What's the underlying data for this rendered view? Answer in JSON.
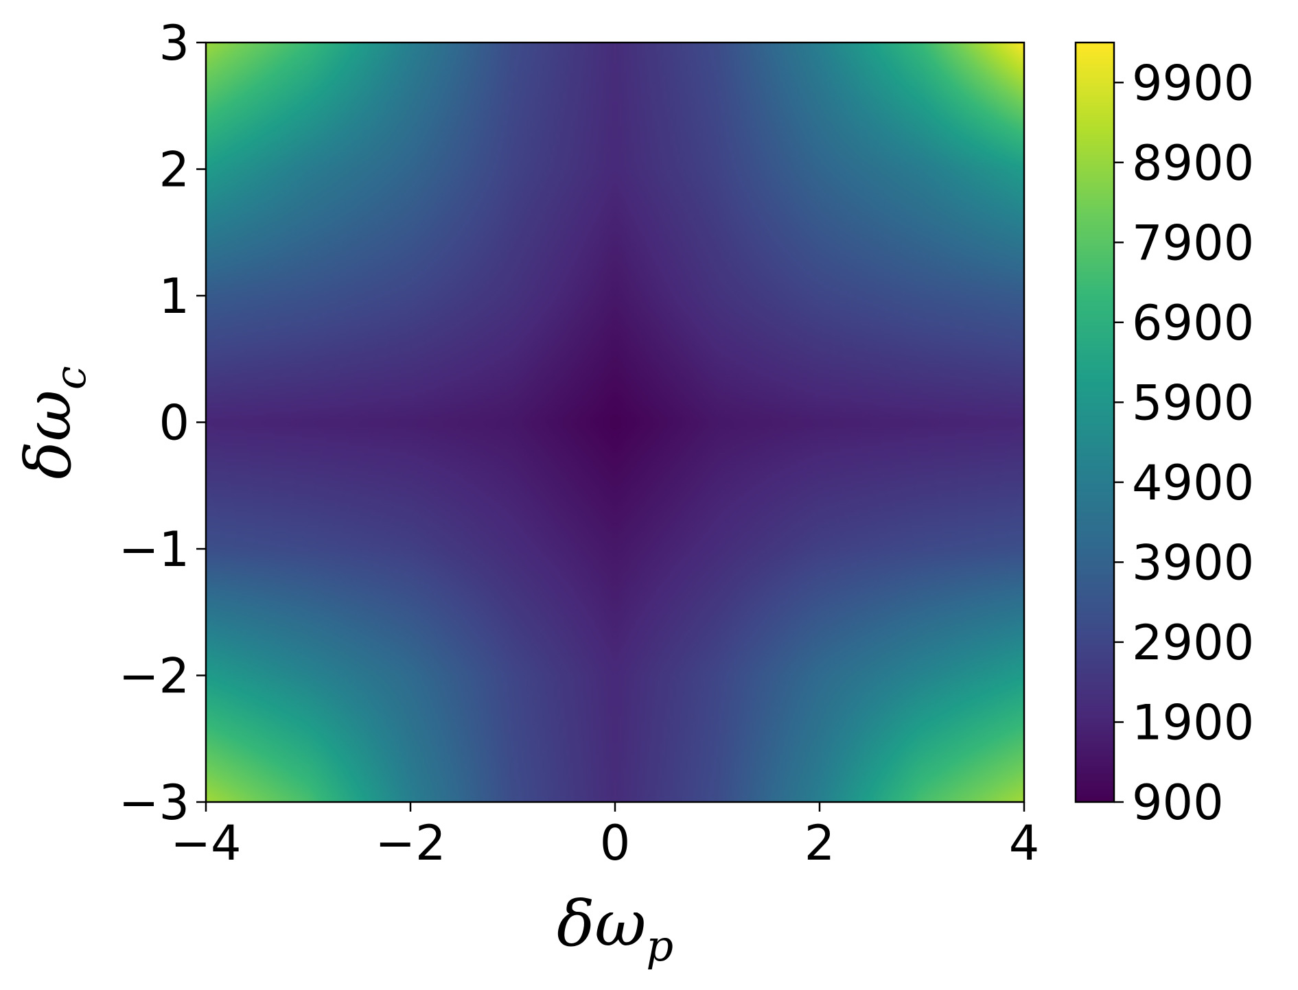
{
  "chart_data": {
    "type": "heatmap",
    "title": "",
    "xlabel": {
      "base": "δω",
      "sub": "p"
    },
    "ylabel": {
      "base": "δω",
      "sub": "c"
    },
    "xlim": [
      -4,
      4
    ],
    "ylim": [
      -3,
      3
    ],
    "x_ticks": [
      -4,
      -2,
      0,
      2,
      4
    ],
    "x_tick_labels": [
      "−4",
      "−2",
      "0",
      "2",
      "4"
    ],
    "y_ticks": [
      -3,
      -2,
      -1,
      0,
      1,
      2,
      3
    ],
    "y_tick_labels": [
      "−3",
      "−2",
      "−1",
      "0",
      "1",
      "2",
      "3"
    ],
    "colormap": "viridis",
    "colorbar": {
      "min": 900,
      "max": 10400,
      "ticks": [
        900,
        1900,
        2900,
        3900,
        4900,
        5900,
        6900,
        7900,
        8900,
        9900
      ],
      "tick_labels": [
        "900",
        "1900",
        "2900",
        "3900",
        "4900",
        "5900",
        "6900",
        "7900",
        "8900",
        "9900"
      ]
    },
    "grid": false,
    "sample_grid": {
      "x": [
        -4,
        -3,
        -2,
        -1,
        0,
        1,
        2,
        3,
        4
      ],
      "y": [
        3,
        2,
        1,
        0,
        -1,
        -2,
        -3
      ],
      "values": [
        [
          9000,
          7300,
          5000,
          3100,
          2100,
          3100,
          5000,
          7300,
          10400
        ],
        [
          6100,
          4900,
          4000,
          2800,
          2000,
          2800,
          4000,
          4900,
          6100
        ],
        [
          3600,
          3300,
          2900,
          2300,
          1500,
          2300,
          2900,
          3300,
          3600
        ],
        [
          1900,
          1800,
          1700,
          1500,
          900,
          1500,
          1700,
          1800,
          1900
        ],
        [
          3200,
          3000,
          2700,
          2100,
          1500,
          2100,
          2700,
          3000,
          3200
        ],
        [
          6100,
          5200,
          4200,
          2900,
          2000,
          2900,
          4200,
          5200,
          6100
        ],
        [
          9100,
          7600,
          5000,
          3100,
          2100,
          3100,
          5000,
          7600,
          9100
        ]
      ]
    }
  }
}
